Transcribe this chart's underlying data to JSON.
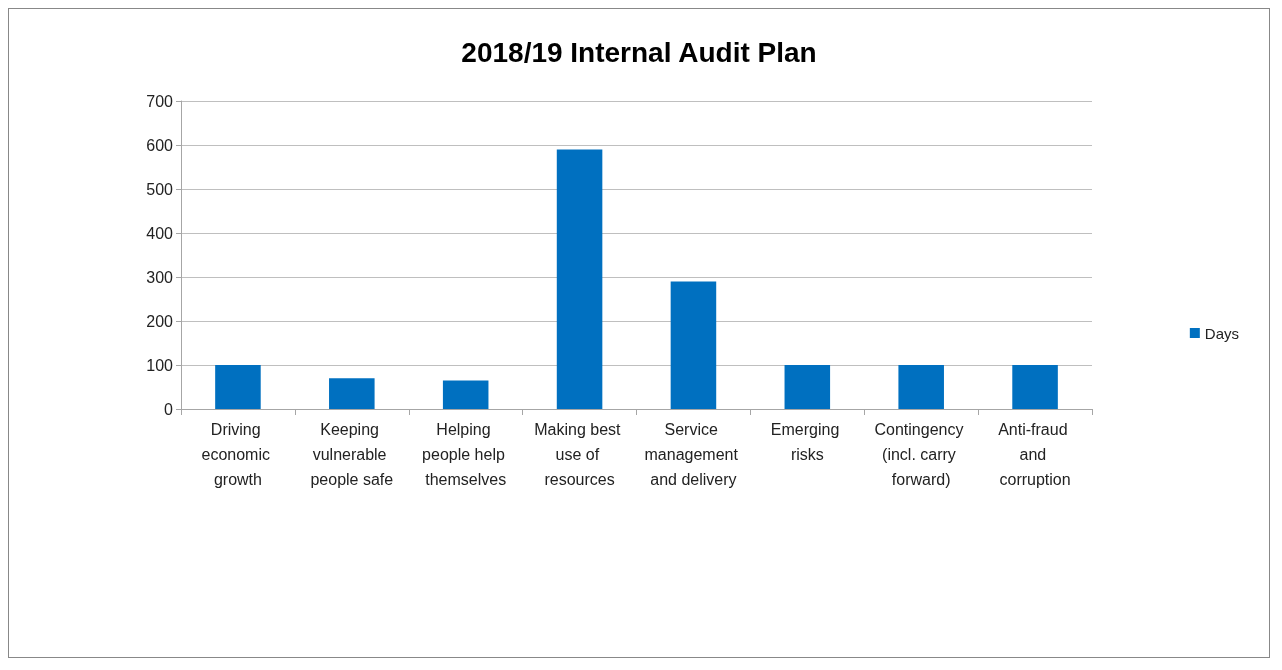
{
  "chart_data": {
    "type": "bar",
    "title": "2018/19 Internal Audit Plan",
    "categories": [
      "Driving economic growth",
      "Keeping vulnerable people safe",
      "Helping people help themselves",
      "Making best use of resources",
      "Service management and delivery",
      "Emerging risks",
      "Contingency (incl. carry forward)",
      "Anti-fraud and corruption"
    ],
    "series": [
      {
        "name": "Days",
        "color": "#0070c0",
        "values": [
          100,
          70,
          65,
          590,
          290,
          100,
          100,
          100
        ]
      }
    ],
    "ylim": [
      0,
      700
    ],
    "yticks": [
      0,
      100,
      200,
      300,
      400,
      500,
      600,
      700
    ],
    "grid": "y",
    "legend": "right"
  }
}
